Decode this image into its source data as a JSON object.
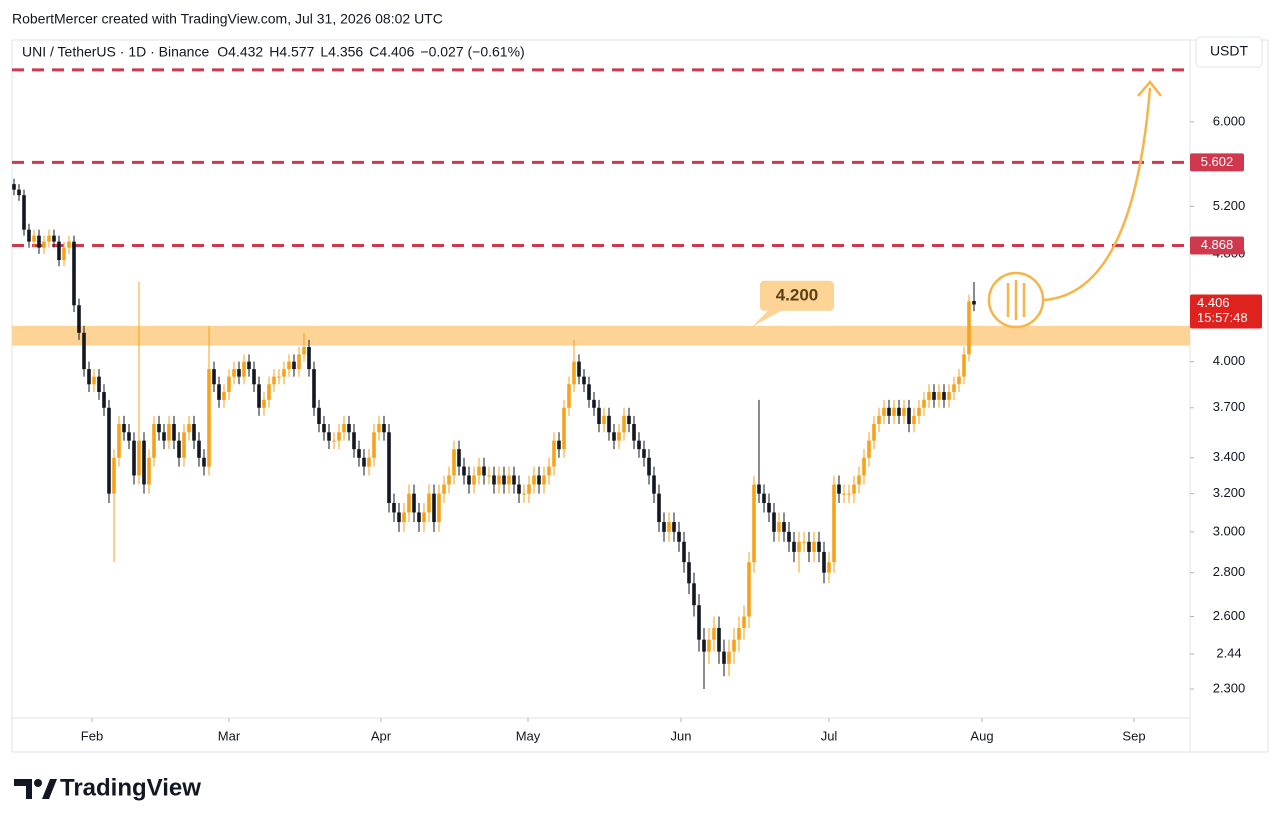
{
  "header": {
    "credit": "RobertMercer created with TradingView.com, Jul 31, 2026 08:02 UTC",
    "symbol": "UNI / TetherUS · 1D · Binance",
    "ohlc": [
      {
        "key": "O",
        "value": "4.432"
      },
      {
        "key": "H",
        "value": "4.577"
      },
      {
        "key": "L",
        "value": "4.356"
      },
      {
        "key": "C",
        "value": "4.406"
      }
    ],
    "change": "−0.027 (−0.61%)",
    "currency": "USDT"
  },
  "footer": {
    "brand": "TradingView"
  },
  "chart_data": {
    "type": "candlestick",
    "up_color": "#f7a21b",
    "down_color": "#131722",
    "log_scale": true,
    "grid": false,
    "xlim": [
      -0.4,
      235.2
    ],
    "xticks": [
      {
        "value": 15.6,
        "label": "Feb"
      },
      {
        "value": 43,
        "label": "Mar"
      },
      {
        "value": 73.4,
        "label": "Apr"
      },
      {
        "value": 102.8,
        "label": "May"
      },
      {
        "value": 133.4,
        "label": "Jun"
      },
      {
        "value": 163,
        "label": "Jul"
      },
      {
        "value": 193.6,
        "label": "Aug"
      },
      {
        "value": 224,
        "label": "Sep"
      }
    ],
    "ylim": [
      2.19,
      6.89
    ],
    "yticks": [
      {
        "value": 6,
        "label": "6.000"
      },
      {
        "value": 5.2,
        "label": "5.200"
      },
      {
        "value": 4.8,
        "label": "4.800"
      },
      {
        "value": 4,
        "label": "4.000"
      },
      {
        "value": 3.7,
        "label": "3.700"
      },
      {
        "value": 3.4,
        "label": "3.400"
      },
      {
        "value": 3.2,
        "label": "3.200"
      },
      {
        "value": 3,
        "label": "3.000"
      },
      {
        "value": 2.8,
        "label": "2.800"
      },
      {
        "value": 2.6,
        "label": "2.600"
      },
      2.44,
      {
        "value": 2.3,
        "label": "2.300"
      }
    ],
    "level_color": "#d0384e",
    "levels": [
      {
        "value": 6.55
      },
      {
        "value": 5.602,
        "label": "5.602"
      },
      {
        "value": 4.868,
        "label": "4.868"
      }
    ],
    "zone": {
      "range": [
        4.11,
        4.25
      ],
      "color": "#fdd396",
      "label": {
        "value": 4.2,
        "label": "4.200"
      }
    },
    "last_price": {
      "value": 4.406,
      "countdown": "15:57:48"
    },
    "ohlc": [
      [
        5.4,
        5.45,
        5.3,
        5.35
      ],
      [
        5.35,
        5.4,
        5.25,
        5.3
      ],
      [
        5.3,
        5.35,
        4.95,
        5.0
      ],
      [
        5.0,
        5.05,
        4.85,
        4.9
      ],
      [
        4.9,
        5.0,
        4.85,
        4.95
      ],
      [
        4.95,
        5.0,
        4.8,
        4.85
      ],
      [
        4.85,
        4.95,
        4.8,
        4.9
      ],
      [
        4.9,
        5.0,
        4.85,
        4.95
      ],
      [
        4.95,
        5.0,
        4.85,
        4.9
      ],
      [
        4.9,
        4.95,
        4.7,
        4.75
      ],
      [
        4.75,
        4.9,
        4.7,
        4.85
      ],
      [
        4.85,
        4.95,
        4.8,
        4.9
      ],
      [
        4.9,
        4.95,
        4.35,
        4.4
      ],
      [
        4.4,
        4.45,
        4.15,
        4.2
      ],
      [
        4.2,
        4.25,
        3.9,
        3.95
      ],
      [
        3.95,
        4.0,
        3.8,
        3.85
      ],
      [
        3.85,
        3.95,
        3.8,
        3.9
      ],
      [
        3.9,
        3.95,
        3.75,
        3.8
      ],
      [
        3.8,
        3.85,
        3.65,
        3.7
      ],
      [
        3.7,
        3.75,
        3.15,
        3.2
      ],
      [
        3.2,
        3.45,
        2.85,
        3.4
      ],
      [
        3.4,
        3.65,
        3.35,
        3.6
      ],
      [
        3.6,
        3.65,
        3.5,
        3.55
      ],
      [
        3.55,
        3.6,
        3.45,
        3.5
      ],
      [
        3.5,
        3.55,
        3.25,
        3.3
      ],
      [
        3.3,
        4.58,
        3.25,
        3.5
      ],
      [
        3.5,
        3.55,
        3.2,
        3.25
      ],
      [
        3.25,
        3.45,
        3.2,
        3.4
      ],
      [
        3.4,
        3.65,
        3.35,
        3.6
      ],
      [
        3.6,
        3.65,
        3.5,
        3.55
      ],
      [
        3.55,
        3.6,
        3.45,
        3.5
      ],
      [
        3.5,
        3.65,
        3.45,
        3.6
      ],
      [
        3.6,
        3.65,
        3.45,
        3.5
      ],
      [
        3.5,
        3.55,
        3.35,
        3.4
      ],
      [
        3.4,
        3.6,
        3.35,
        3.55
      ],
      [
        3.55,
        3.65,
        3.5,
        3.6
      ],
      [
        3.6,
        3.65,
        3.45,
        3.5
      ],
      [
        3.5,
        3.55,
        3.35,
        3.4
      ],
      [
        3.4,
        3.45,
        3.3,
        3.35
      ],
      [
        3.35,
        4.25,
        3.3,
        3.95
      ],
      [
        3.95,
        4.0,
        3.8,
        3.85
      ],
      [
        3.85,
        3.9,
        3.7,
        3.75
      ],
      [
        3.75,
        3.85,
        3.7,
        3.8
      ],
      [
        3.8,
        3.95,
        3.75,
        3.9
      ],
      [
        3.9,
        4.0,
        3.85,
        3.95
      ],
      [
        3.95,
        4.0,
        3.85,
        3.9
      ],
      [
        3.9,
        4.05,
        3.85,
        4.0
      ],
      [
        4.0,
        4.05,
        3.9,
        3.95
      ],
      [
        3.95,
        4.0,
        3.8,
        3.85
      ],
      [
        3.85,
        3.9,
        3.65,
        3.7
      ],
      [
        3.7,
        3.8,
        3.65,
        3.75
      ],
      [
        3.75,
        3.9,
        3.7,
        3.85
      ],
      [
        3.85,
        3.95,
        3.8,
        3.9
      ],
      [
        3.9,
        3.95,
        3.85,
        3.9
      ],
      [
        3.9,
        4.0,
        3.85,
        3.95
      ],
      [
        3.95,
        4.05,
        3.9,
        4.0
      ],
      [
        4.0,
        4.05,
        3.9,
        3.95
      ],
      [
        3.95,
        4.1,
        3.9,
        4.05
      ],
      [
        4.05,
        4.2,
        4.0,
        4.1
      ],
      [
        4.1,
        4.15,
        3.9,
        3.95
      ],
      [
        3.95,
        4.0,
        3.65,
        3.7
      ],
      [
        3.7,
        3.75,
        3.55,
        3.6
      ],
      [
        3.6,
        3.65,
        3.5,
        3.55
      ],
      [
        3.55,
        3.6,
        3.45,
        3.5
      ],
      [
        3.5,
        3.55,
        3.45,
        3.5
      ],
      [
        3.5,
        3.6,
        3.45,
        3.55
      ],
      [
        3.55,
        3.65,
        3.5,
        3.6
      ],
      [
        3.6,
        3.65,
        3.5,
        3.55
      ],
      [
        3.55,
        3.6,
        3.4,
        3.45
      ],
      [
        3.45,
        3.5,
        3.35,
        3.4
      ],
      [
        3.4,
        3.45,
        3.3,
        3.35
      ],
      [
        3.35,
        3.45,
        3.3,
        3.4
      ],
      [
        3.4,
        3.6,
        3.35,
        3.55
      ],
      [
        3.55,
        3.65,
        3.5,
        3.6
      ],
      [
        3.6,
        3.65,
        3.5,
        3.55
      ],
      [
        3.55,
        3.6,
        3.1,
        3.15
      ],
      [
        3.15,
        3.2,
        3.05,
        3.1
      ],
      [
        3.1,
        3.15,
        3.0,
        3.05
      ],
      [
        3.05,
        3.15,
        3.0,
        3.1
      ],
      [
        3.1,
        3.25,
        3.05,
        3.2
      ],
      [
        3.2,
        3.25,
        3.05,
        3.1
      ],
      [
        3.1,
        3.15,
        3.0,
        3.05
      ],
      [
        3.05,
        3.15,
        3.0,
        3.1
      ],
      [
        3.1,
        3.25,
        3.05,
        3.2
      ],
      [
        3.2,
        3.25,
        3.0,
        3.05
      ],
      [
        3.05,
        3.25,
        3.0,
        3.2
      ],
      [
        3.2,
        3.3,
        3.15,
        3.25
      ],
      [
        3.25,
        3.35,
        3.2,
        3.3
      ],
      [
        3.3,
        3.5,
        3.25,
        3.45
      ],
      [
        3.45,
        3.5,
        3.3,
        3.35
      ],
      [
        3.35,
        3.4,
        3.25,
        3.3
      ],
      [
        3.3,
        3.35,
        3.2,
        3.25
      ],
      [
        3.25,
        3.35,
        3.2,
        3.3
      ],
      [
        3.3,
        3.4,
        3.25,
        3.35
      ],
      [
        3.35,
        3.4,
        3.25,
        3.3
      ],
      [
        3.3,
        3.35,
        3.25,
        3.3
      ],
      [
        3.3,
        3.35,
        3.2,
        3.25
      ],
      [
        3.25,
        3.35,
        3.2,
        3.3
      ],
      [
        3.3,
        3.35,
        3.2,
        3.25
      ],
      [
        3.25,
        3.35,
        3.2,
        3.3
      ],
      [
        3.3,
        3.35,
        3.2,
        3.25
      ],
      [
        3.25,
        3.3,
        3.15,
        3.2
      ],
      [
        3.2,
        3.25,
        3.15,
        3.2
      ],
      [
        3.2,
        3.3,
        3.15,
        3.25
      ],
      [
        3.25,
        3.35,
        3.2,
        3.3
      ],
      [
        3.3,
        3.35,
        3.2,
        3.25
      ],
      [
        3.25,
        3.35,
        3.2,
        3.3
      ],
      [
        3.3,
        3.4,
        3.25,
        3.35
      ],
      [
        3.35,
        3.55,
        3.3,
        3.5
      ],
      [
        3.5,
        3.55,
        3.4,
        3.45
      ],
      [
        3.45,
        3.75,
        3.4,
        3.7
      ],
      [
        3.7,
        3.9,
        3.65,
        3.85
      ],
      [
        3.85,
        4.15,
        3.8,
        4.0
      ],
      [
        4.0,
        4.05,
        3.85,
        3.9
      ],
      [
        3.9,
        3.95,
        3.8,
        3.85
      ],
      [
        3.85,
        3.9,
        3.7,
        3.75
      ],
      [
        3.75,
        3.8,
        3.65,
        3.7
      ],
      [
        3.7,
        3.75,
        3.55,
        3.6
      ],
      [
        3.6,
        3.7,
        3.55,
        3.65
      ],
      [
        3.65,
        3.7,
        3.5,
        3.55
      ],
      [
        3.55,
        3.6,
        3.45,
        3.5
      ],
      [
        3.5,
        3.6,
        3.45,
        3.55
      ],
      [
        3.55,
        3.7,
        3.5,
        3.65
      ],
      [
        3.65,
        3.7,
        3.55,
        3.6
      ],
      [
        3.6,
        3.65,
        3.45,
        3.5
      ],
      [
        3.5,
        3.55,
        3.4,
        3.45
      ],
      [
        3.45,
        3.5,
        3.35,
        3.4
      ],
      [
        3.4,
        3.45,
        3.25,
        3.3
      ],
      [
        3.3,
        3.35,
        3.15,
        3.2
      ],
      [
        3.2,
        3.25,
        3.0,
        3.05
      ],
      [
        3.05,
        3.1,
        2.95,
        3.0
      ],
      [
        3.0,
        3.1,
        2.95,
        3.05
      ],
      [
        3.05,
        3.1,
        2.95,
        3.0
      ],
      [
        3.0,
        3.05,
        2.9,
        2.95
      ],
      [
        2.95,
        3.0,
        2.8,
        2.85
      ],
      [
        2.85,
        2.9,
        2.7,
        2.75
      ],
      [
        2.75,
        2.8,
        2.6,
        2.65
      ],
      [
        2.65,
        2.7,
        2.45,
        2.5
      ],
      [
        2.5,
        2.55,
        2.3,
        2.45
      ],
      [
        2.45,
        2.55,
        2.4,
        2.5
      ],
      [
        2.5,
        2.6,
        2.45,
        2.55
      ],
      [
        2.55,
        2.6,
        2.4,
        2.45
      ],
      [
        2.45,
        2.5,
        2.35,
        2.4
      ],
      [
        2.4,
        2.5,
        2.35,
        2.45
      ],
      [
        2.45,
        2.55,
        2.4,
        2.5
      ],
      [
        2.5,
        2.6,
        2.45,
        2.55
      ],
      [
        2.55,
        2.65,
        2.5,
        2.6
      ],
      [
        2.6,
        2.9,
        2.55,
        2.85
      ],
      [
        2.85,
        3.3,
        2.8,
        3.25
      ],
      [
        3.25,
        3.75,
        3.15,
        3.2
      ],
      [
        3.2,
        3.25,
        3.1,
        3.15
      ],
      [
        3.15,
        3.2,
        3.05,
        3.1
      ],
      [
        3.1,
        3.15,
        2.95,
        3.0
      ],
      [
        3.0,
        3.1,
        2.95,
        3.05
      ],
      [
        3.05,
        3.1,
        2.95,
        3.0
      ],
      [
        3.0,
        3.05,
        2.9,
        2.95
      ],
      [
        2.95,
        3.0,
        2.85,
        2.9
      ],
      [
        2.9,
        3.0,
        2.8,
        2.95
      ],
      [
        2.95,
        3.0,
        2.9,
        2.95
      ],
      [
        2.95,
        3.0,
        2.85,
        2.9
      ],
      [
        2.9,
        3.0,
        2.85,
        2.95
      ],
      [
        2.95,
        3.0,
        2.85,
        2.9
      ],
      [
        2.9,
        2.95,
        2.75,
        2.8
      ],
      [
        2.8,
        2.9,
        2.75,
        2.85
      ],
      [
        2.85,
        3.3,
        2.8,
        3.25
      ],
      [
        3.25,
        3.3,
        3.15,
        3.2
      ],
      [
        3.2,
        3.25,
        3.15,
        3.2
      ],
      [
        3.2,
        3.25,
        3.15,
        3.2
      ],
      [
        3.2,
        3.3,
        3.15,
        3.25
      ],
      [
        3.25,
        3.35,
        3.2,
        3.3
      ],
      [
        3.3,
        3.45,
        3.25,
        3.4
      ],
      [
        3.4,
        3.55,
        3.35,
        3.5
      ],
      [
        3.5,
        3.65,
        3.45,
        3.6
      ],
      [
        3.6,
        3.7,
        3.55,
        3.65
      ],
      [
        3.65,
        3.75,
        3.6,
        3.7
      ],
      [
        3.7,
        3.75,
        3.6,
        3.65
      ],
      [
        3.65,
        3.75,
        3.6,
        3.7
      ],
      [
        3.7,
        3.75,
        3.6,
        3.65
      ],
      [
        3.65,
        3.75,
        3.6,
        3.7
      ],
      [
        3.7,
        3.75,
        3.55,
        3.6
      ],
      [
        3.6,
        3.7,
        3.55,
        3.65
      ],
      [
        3.65,
        3.75,
        3.6,
        3.7
      ],
      [
        3.7,
        3.8,
        3.65,
        3.75
      ],
      [
        3.75,
        3.85,
        3.7,
        3.8
      ],
      [
        3.8,
        3.85,
        3.7,
        3.75
      ],
      [
        3.75,
        3.85,
        3.7,
        3.8
      ],
      [
        3.8,
        3.85,
        3.7,
        3.75
      ],
      [
        3.75,
        3.85,
        3.7,
        3.8
      ],
      [
        3.8,
        3.9,
        3.75,
        3.85
      ],
      [
        3.85,
        3.95,
        3.8,
        3.9
      ],
      [
        3.9,
        4.1,
        3.85,
        4.05
      ],
      [
        4.05,
        4.48,
        4.0,
        4.43
      ],
      [
        4.432,
        4.577,
        4.356,
        4.406
      ]
    ]
  }
}
